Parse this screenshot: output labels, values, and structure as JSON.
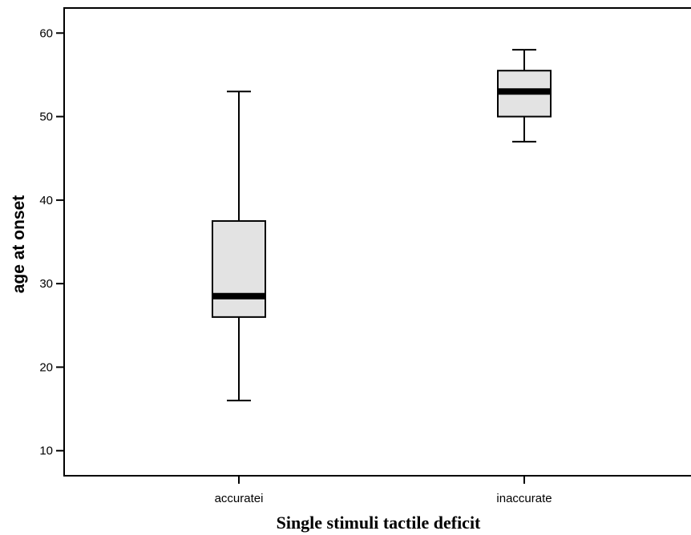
{
  "chart_data": {
    "type": "box",
    "categories": [
      "accuratei",
      "inaccurate"
    ],
    "boxes": [
      {
        "category": "accuratei",
        "min": 16,
        "q1": 26,
        "median": 28.5,
        "q3": 37.5,
        "max": 53
      },
      {
        "category": "inaccurate",
        "min": 47,
        "q1": 50,
        "median": 53,
        "q3": 55.5,
        "max": 58
      }
    ],
    "title": "",
    "xlabel": "Single stimuli tactile deficit",
    "ylabel": "age at onset",
    "ylim": [
      7,
      63
    ],
    "yticks": [
      10,
      20,
      30,
      40,
      50,
      60
    ],
    "grid": false,
    "box_fill": "#e3e3e3",
    "line_color": "#000000"
  }
}
